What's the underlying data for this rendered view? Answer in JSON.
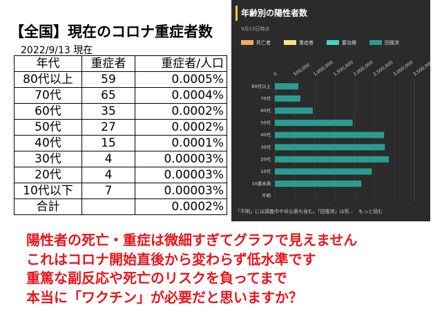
{
  "header": {
    "title": "【全国】現在のコロナ重症者数",
    "date": "2022/9/13 現在"
  },
  "table": {
    "header": [
      "年代",
      "重症者",
      "重症者/人口"
    ],
    "rows": [
      [
        "80代以上",
        "59",
        "0.0005%"
      ],
      [
        "70代",
        "65",
        "0.0004%"
      ],
      [
        "60代",
        "35",
        "0.0002%"
      ],
      [
        "50代",
        "27",
        "0.0002%"
      ],
      [
        "40代",
        "15",
        "0.0001%"
      ],
      [
        "30代",
        "4",
        "0.00003%"
      ],
      [
        "20代",
        "4",
        "0.00003%"
      ],
      [
        "10代以下",
        "7",
        "0.00003%"
      ],
      [
        "合計",
        "",
        "0.0002%"
      ]
    ]
  },
  "chart_data": {
    "type": "stacked-barh",
    "title": "年齢別の陽性者数",
    "subtitle": "9月13日時点",
    "categories": [
      "80代以上",
      "70代",
      "60代",
      "50代",
      "40代",
      "30代",
      "20代",
      "10代",
      "10歳未満",
      "不明"
    ],
    "series": [
      {
        "name": "死亡者",
        "color": "#f6a96b",
        "values": [
          0,
          0,
          0,
          0,
          0,
          0,
          0,
          0,
          0,
          0
        ]
      },
      {
        "name": "重症者",
        "color": "#f7e08a",
        "values": [
          0,
          0,
          0,
          0,
          0,
          0,
          0,
          0,
          0,
          0
        ]
      },
      {
        "name": "要治療",
        "color": "#3fd6c8",
        "values": [
          0,
          0,
          0,
          0,
          0,
          0,
          0,
          0,
          0,
          0
        ]
      },
      {
        "name": "回復済",
        "color": "#2a9d90",
        "values": [
          590000,
          640000,
          950000,
          1950000,
          2740000,
          2760000,
          2860000,
          2430000,
          2170000,
          0
        ]
      }
    ],
    "xlim": [
      0,
      3500000
    ],
    "xticks": [
      0,
      {
        "value": 500000,
        "label": "500,000"
      },
      {
        "value": 1000000,
        "label": "1,000,000"
      },
      {
        "value": 1500000,
        "label": "1,500,000"
      },
      {
        "value": 2000000,
        "label": "2,000,000"
      },
      {
        "value": 2500000,
        "label": "2,500,000"
      },
      {
        "value": 3000000,
        "label": "3,000,000"
      },
      {
        "value": 3500000,
        "label": "3,500,000"
      }
    ],
    "footnote": "「不明」には調査中や非公表も含む。「回復済」は死...　もっと読む"
  },
  "message": [
    "陽性者の死亡・重症は微細すぎてグラフで見えません",
    "これはコロナ開始直後から変わらず低水準です",
    "重篤な副反応や死亡のリスクを負ってまで",
    "本当に「ワクチン」が必要だと思いますか？"
  ]
}
